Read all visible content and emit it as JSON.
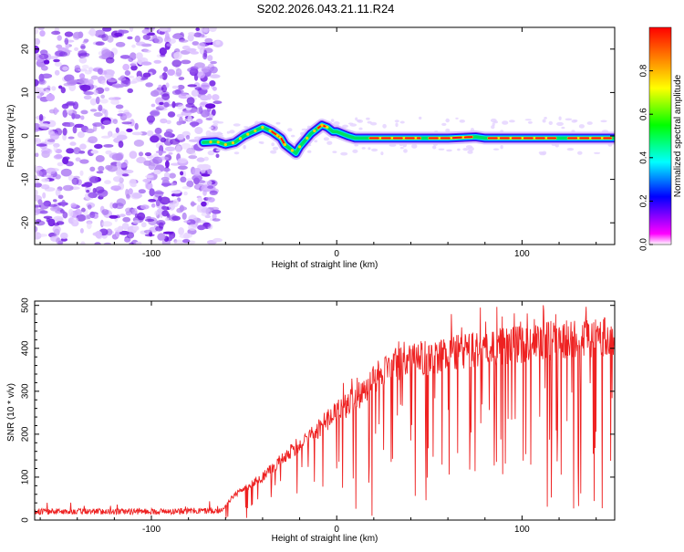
{
  "page_title": "S202.2026.043.21.11.R24",
  "chart_data": [
    {
      "type": "heatmap",
      "title": "S202.2026.043.21.11.R24",
      "xlabel": "Height of straight line (km)",
      "ylabel": "Frequency (Hz)",
      "xlim": [
        -163,
        150
      ],
      "ylim": [
        -25,
        25
      ],
      "xticks": [
        -100,
        0,
        100
      ],
      "yticks": [
        -20,
        -10,
        0,
        10,
        20
      ],
      "noise_region_x": [
        -163,
        -68
      ],
      "signal_trace": {
        "x": [
          -72,
          -65,
          -60,
          -55,
          -50,
          -45,
          -40,
          -35,
          -30,
          -28,
          -25,
          -22,
          -20,
          -17,
          -14,
          -11,
          -8,
          -5,
          -2,
          0,
          3,
          6,
          10,
          15,
          20,
          40,
          60,
          75,
          80,
          100,
          120,
          150
        ],
        "freq": [
          -1.5,
          -1.3,
          -2.0,
          -1.5,
          0.0,
          1.0,
          2.0,
          1.0,
          -0.5,
          -2.0,
          -3.0,
          -4.0,
          -2.5,
          -1.0,
          0.5,
          1.5,
          2.5,
          2.0,
          1.0,
          1.0,
          0.5,
          0.0,
          -0.5,
          -0.5,
          -0.5,
          -0.5,
          -0.5,
          -0.2,
          -0.5,
          -0.5,
          -0.5,
          -0.5
        ]
      },
      "colorbar": {
        "label": "Normalized spectral amplitude",
        "range": [
          0,
          1
        ],
        "ticks": [
          "0.0",
          "0.2",
          "0.4",
          "0.6",
          "0.8"
        ],
        "colors": [
          "#ffffff",
          "#ff00ff",
          "#0000ff",
          "#00ffff",
          "#00ff00",
          "#ffff00",
          "#ff0000"
        ]
      }
    },
    {
      "type": "line",
      "xlabel": "Height of straight line (km)",
      "ylabel": "SNR (10 * v/v)",
      "xlim": [
        -163,
        150
      ],
      "ylim": [
        0,
        510
      ],
      "xticks": [
        -100,
        0,
        100
      ],
      "yticks": [
        0,
        100,
        200,
        300,
        400,
        500
      ],
      "series": [
        {
          "name": "SNR",
          "color": "#ee2222",
          "envelope_x": [
            -163,
            -100,
            -62,
            -55,
            -40,
            -25,
            -10,
            0,
            15,
            20,
            30,
            50,
            80,
            100,
            120,
            150
          ],
          "envelope_y": [
            20,
            20,
            22,
            60,
            100,
            160,
            210,
            250,
            300,
            330,
            360,
            380,
            400,
            410,
            420,
            430
          ]
        }
      ]
    }
  ]
}
